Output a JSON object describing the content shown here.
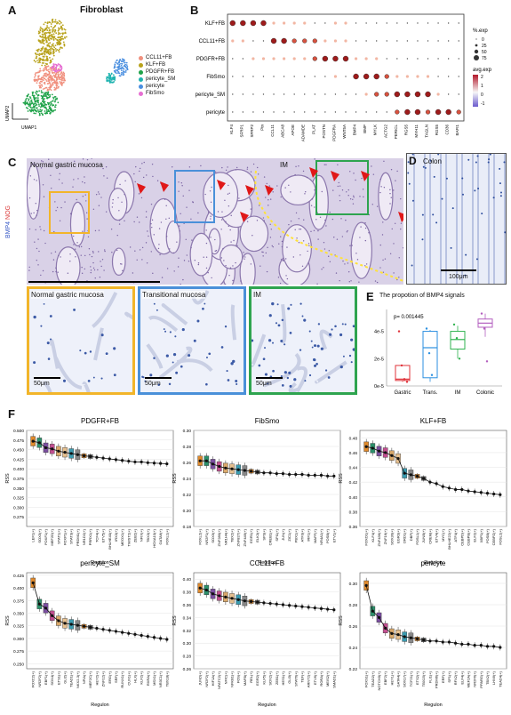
{
  "panels": {
    "a": "A",
    "b": "B",
    "c": "C",
    "d": "D",
    "e": "E",
    "f": "F"
  },
  "panel_a": {
    "title": "Fibroblast",
    "axis_x": "UMAP1",
    "axis_y": "UMAP2",
    "legend": [
      {
        "label": "CCL11+FB",
        "color": "#f0907e"
      },
      {
        "label": "KLF+FB",
        "color": "#b8a21c"
      },
      {
        "label": "PDGFR+FB",
        "color": "#20a34a"
      },
      {
        "label": "pericyte_SM",
        "color": "#1fb3b0"
      },
      {
        "label": "pericyte",
        "color": "#4a8fe0"
      },
      {
        "label": "FibSmo",
        "color": "#e66fd2"
      }
    ]
  },
  "panel_b": {
    "rows": [
      "KLF+FB",
      "CCL11+FB",
      "PDGFR+FB",
      "FibSmo",
      "pericyte_SM",
      "pericyte"
    ],
    "cols": [
      "KLF4",
      "SFRP1",
      "SFRP2",
      "Ptn",
      "CCL11",
      "ABCA8",
      "APOE",
      "ADAMDE",
      "PLAT",
      "POSTN",
      "PDGFRA",
      "WNT5A",
      "BMP4",
      "BMP",
      "MYLK",
      "ACTG2",
      "PERICL",
      "RGS5",
      "MYH11",
      "TAGLN",
      "RGS5",
      "CD36",
      "BAFI1"
    ],
    "size_legend_title": "%.exp",
    "size_legend": [
      "0",
      "25",
      "50",
      "75"
    ],
    "color_legend_title": "avg.exp",
    "color_legend": [
      "2",
      "1",
      "0",
      "-1"
    ],
    "colors": {
      "high": "#b2182b",
      "mid": "#f7f7f7",
      "low": "#6a5acd"
    }
  },
  "panel_c": {
    "side_label_a": "BMP4",
    "side_label_b": "NOG",
    "label_left": "Normal gastric mucosa",
    "label_right": "IM",
    "crops": [
      {
        "label": "Normal gastric mucosa",
        "scale": "50μm",
        "color": "#f2b52a"
      },
      {
        "label": "Transitional mucosa",
        "scale": "50μm",
        "color": "#4a90d9"
      },
      {
        "label": "IM",
        "scale": "50μm",
        "color": "#2ea44f"
      }
    ]
  },
  "panel_d": {
    "label": "Colon",
    "scale": "100μm"
  },
  "panel_e": {
    "title": "The propotion of BMP4 signals",
    "pvalue": "p= 0.001445",
    "yticks": [
      "4e-5",
      "2e-5",
      "0e-5"
    ],
    "categories": [
      "Gastric",
      "Trans.",
      "IM",
      "Colonic"
    ],
    "colors": [
      "#e0333a",
      "#2b8fe0",
      "#2fb34f",
      "#b35fbf"
    ]
  },
  "chart_data": [
    {
      "type": "box",
      "title": "The propotion of BMP4 signals",
      "categories": [
        "Gastric",
        "Trans.",
        "IM",
        "Colonic"
      ],
      "series": [
        {
          "name": "Gastric",
          "min": 3e-06,
          "q1": 4e-06,
          "median": 5e-06,
          "q3": 1.5e-05,
          "max": 1.5e-05,
          "points": [
            4e-05,
            1.5e-05,
            5e-06,
            3e-06
          ]
        },
        {
          "name": "Trans.",
          "min": 3e-06,
          "q1": 6e-06,
          "median": 2.8e-05,
          "q3": 4e-05,
          "max": 4.1e-05,
          "points": [
            4.2e-05,
            2.4e-05,
            8e-06
          ]
        },
        {
          "name": "IM",
          "min": 2e-05,
          "q1": 2.7e-05,
          "median": 3.4e-05,
          "q3": 4e-05,
          "max": 4.4e-05,
          "points": [
            4.5e-05,
            3.5e-05,
            2e-05
          ]
        },
        {
          "name": "Colonic",
          "min": 3.6e-05,
          "q1": 4.3e-05,
          "median": 4.6e-05,
          "q3": 4.9e-05,
          "max": 5.3e-05,
          "points": [
            5.3e-05,
            4.2e-05,
            1.8e-05
          ]
        }
      ]
    },
    {
      "type": "box",
      "title": "PDGFR+FB",
      "ylabel": "RSS",
      "xlabel": "Regulon",
      "ylim": [
        0.25,
        0.5
      ],
      "yticks": [
        "0.500",
        "0.475",
        "0.450",
        "0.425",
        "0.400",
        "0.375",
        "0.350",
        "0.325",
        "0.300",
        "0.275"
      ],
      "values": [
        0.472,
        0.468,
        0.455,
        0.452,
        0.446,
        0.443,
        0.44,
        0.437,
        0.434,
        0.432,
        0.43,
        0.428,
        0.426,
        0.424,
        0.422,
        0.42,
        0.418,
        0.418,
        0.416,
        0.415,
        0.414,
        0.413
      ]
    },
    {
      "type": "box",
      "title": "FibSmo",
      "ylabel": "RSS",
      "xlabel": "Regulon",
      "ylim": [
        0.18,
        0.3
      ],
      "yticks": [
        "0.30",
        "0.28",
        "0.26",
        "0.24",
        "0.22",
        "0.20",
        "0.18"
      ],
      "values": [
        0.262,
        0.262,
        0.258,
        0.255,
        0.253,
        0.252,
        0.251,
        0.25,
        0.249,
        0.248,
        0.247,
        0.247,
        0.246,
        0.246,
        0.245,
        0.245,
        0.245,
        0.244,
        0.244,
        0.244,
        0.243,
        0.243
      ]
    },
    {
      "type": "box",
      "title": "KLF+FB",
      "ylabel": "RSS",
      "xlabel": "Regulon",
      "ylim": [
        0.36,
        0.49
      ],
      "yticks": [
        "0.48",
        "0.46",
        "0.44",
        "0.42",
        "0.40",
        "0.38",
        "0.36"
      ],
      "values": [
        0.468,
        0.466,
        0.462,
        0.46,
        0.456,
        0.452,
        0.432,
        0.43,
        0.428,
        0.425,
        0.42,
        0.418,
        0.414,
        0.412,
        0.41,
        0.41,
        0.408,
        0.407,
        0.406,
        0.405,
        0.404,
        0.403
      ]
    },
    {
      "type": "box",
      "title": "pericyte_SM",
      "ylabel": "RSS",
      "xlabel": "Regulon",
      "ylim": [
        0.24,
        0.43
      ],
      "yticks": [
        "0.425",
        "0.400",
        "0.375",
        "0.350",
        "0.325",
        "0.300",
        "0.275",
        "0.250"
      ],
      "values": [
        0.41,
        0.368,
        0.36,
        0.345,
        0.335,
        0.33,
        0.328,
        0.326,
        0.324,
        0.322,
        0.32,
        0.318,
        0.316,
        0.314,
        0.312,
        0.31,
        0.308,
        0.306,
        0.304,
        0.302,
        0.3,
        0.298
      ]
    },
    {
      "type": "box",
      "title": "CCL11+FB",
      "ylabel": "RSS",
      "xlabel": "Regulon",
      "ylim": [
        0.26,
        0.41
      ],
      "yticks": [
        "0.40",
        "0.38",
        "0.36",
        "0.34",
        "0.32",
        "0.30",
        "0.28",
        "0.26"
      ],
      "values": [
        0.386,
        0.383,
        0.377,
        0.374,
        0.372,
        0.37,
        0.368,
        0.366,
        0.365,
        0.364,
        0.363,
        0.362,
        0.361,
        0.36,
        0.359,
        0.358,
        0.357,
        0.356,
        0.355,
        0.354,
        0.353,
        0.352
      ]
    },
    {
      "type": "box",
      "title": "pericyte",
      "ylabel": "RSS",
      "xlabel": "Regulon",
      "ylim": [
        0.22,
        0.31
      ],
      "yticks": [
        "0.30",
        "0.28",
        "0.26",
        "0.24",
        "0.22"
      ],
      "values": [
        0.298,
        0.274,
        0.268,
        0.258,
        0.253,
        0.252,
        0.25,
        0.249,
        0.248,
        0.247,
        0.246,
        0.246,
        0.245,
        0.245,
        0.244,
        0.243,
        0.243,
        0.242,
        0.242,
        0.241,
        0.241,
        0.24
      ]
    }
  ],
  "panel_f": {
    "colors": [
      "#e08a2c",
      "#2c8f6a",
      "#7b4fa0",
      "#c24f90",
      "#d9a86a",
      "#e6c08f",
      "#3a9bb0",
      "#888888"
    ],
    "regulons": [
      [
        "LEF1",
        "SOX5",
        "FOXF1",
        "MEF2D",
        "STAT1",
        "FOXP1",
        "STAT3",
        "PRDM1",
        "NR1D2",
        "PRRX1",
        "TCF4",
        "ETV5",
        "BHLHE40",
        "IRX3",
        "MEOX1",
        "TWIST2",
        "ZEB2",
        "NFIX",
        "TBX3",
        "HOXA10",
        "GATA6",
        "FOXL1"
      ],
      [
        "FOXL2",
        "NR2F1",
        "SOX9",
        "ZNF280",
        "NR1H4",
        "TBX2",
        "ZNF827",
        "ZNF449",
        "EGR1",
        "ELK3",
        "SP3",
        "CREB1",
        "SPI1",
        "JUN",
        "ZIC1",
        "PBX1",
        "ATF3",
        "IRF1",
        "MAFF",
        "NR4A1",
        "FOSB",
        "ETV1"
      ],
      [
        "FOXO1",
        "KLF4",
        "ZNF436",
        "ZNF16",
        "SOX30",
        "EGR3",
        "DRD1",
        "DBP",
        "FOSL1",
        "JUNB",
        "CREM",
        "ETV4",
        "MYC",
        "BHLHE22",
        "ATF4",
        "CEBPD",
        "CEBPB",
        "ELF2",
        "XBP1",
        "FOSB",
        "CEBPZ",
        "FOSL2"
      ],
      [
        "FOXC2",
        "NR2F2",
        "EBF1",
        "SOX4",
        "ETS1",
        "GLI2",
        "TEAD1",
        "NKX2-3",
        "NFIA",
        "MEF2C",
        "HEY2",
        "ZNF12",
        "ERG",
        "SRF",
        "RUNX1",
        "CUX1",
        "HLX",
        "KLF2",
        "RXRA",
        "MSX1",
        "NR3C1",
        "TBX18"
      ],
      [
        "JUND",
        "NR2F2",
        "HIF1A",
        "NFATC2",
        "NFIC",
        "NFKB1",
        "FOS",
        "MAFB",
        "REL",
        "EGR2",
        "KLF5",
        "SOX2",
        "ZEB1",
        "HES1",
        "GLI3",
        "STAT6",
        "TEF",
        "ARNT2",
        "ETV6",
        "RORA",
        "MEIS2",
        "SMAD1"
      ],
      [
        "FOXS1",
        "TEAD2",
        "NOTCH3",
        "EBF2",
        "HEYL",
        "GATA4",
        "SOX17",
        "TCF21",
        "ETS2",
        "TBX15",
        "FLI1",
        "PRDM6",
        "ERF",
        "SP1",
        "RFX2",
        "ELF4",
        "MEF2A",
        "NR2F6",
        "PPARG",
        "TBX2",
        "LHX6",
        "TEAD4"
      ]
    ],
    "xlabel": "Regulon",
    "ylabel": "RSS"
  }
}
